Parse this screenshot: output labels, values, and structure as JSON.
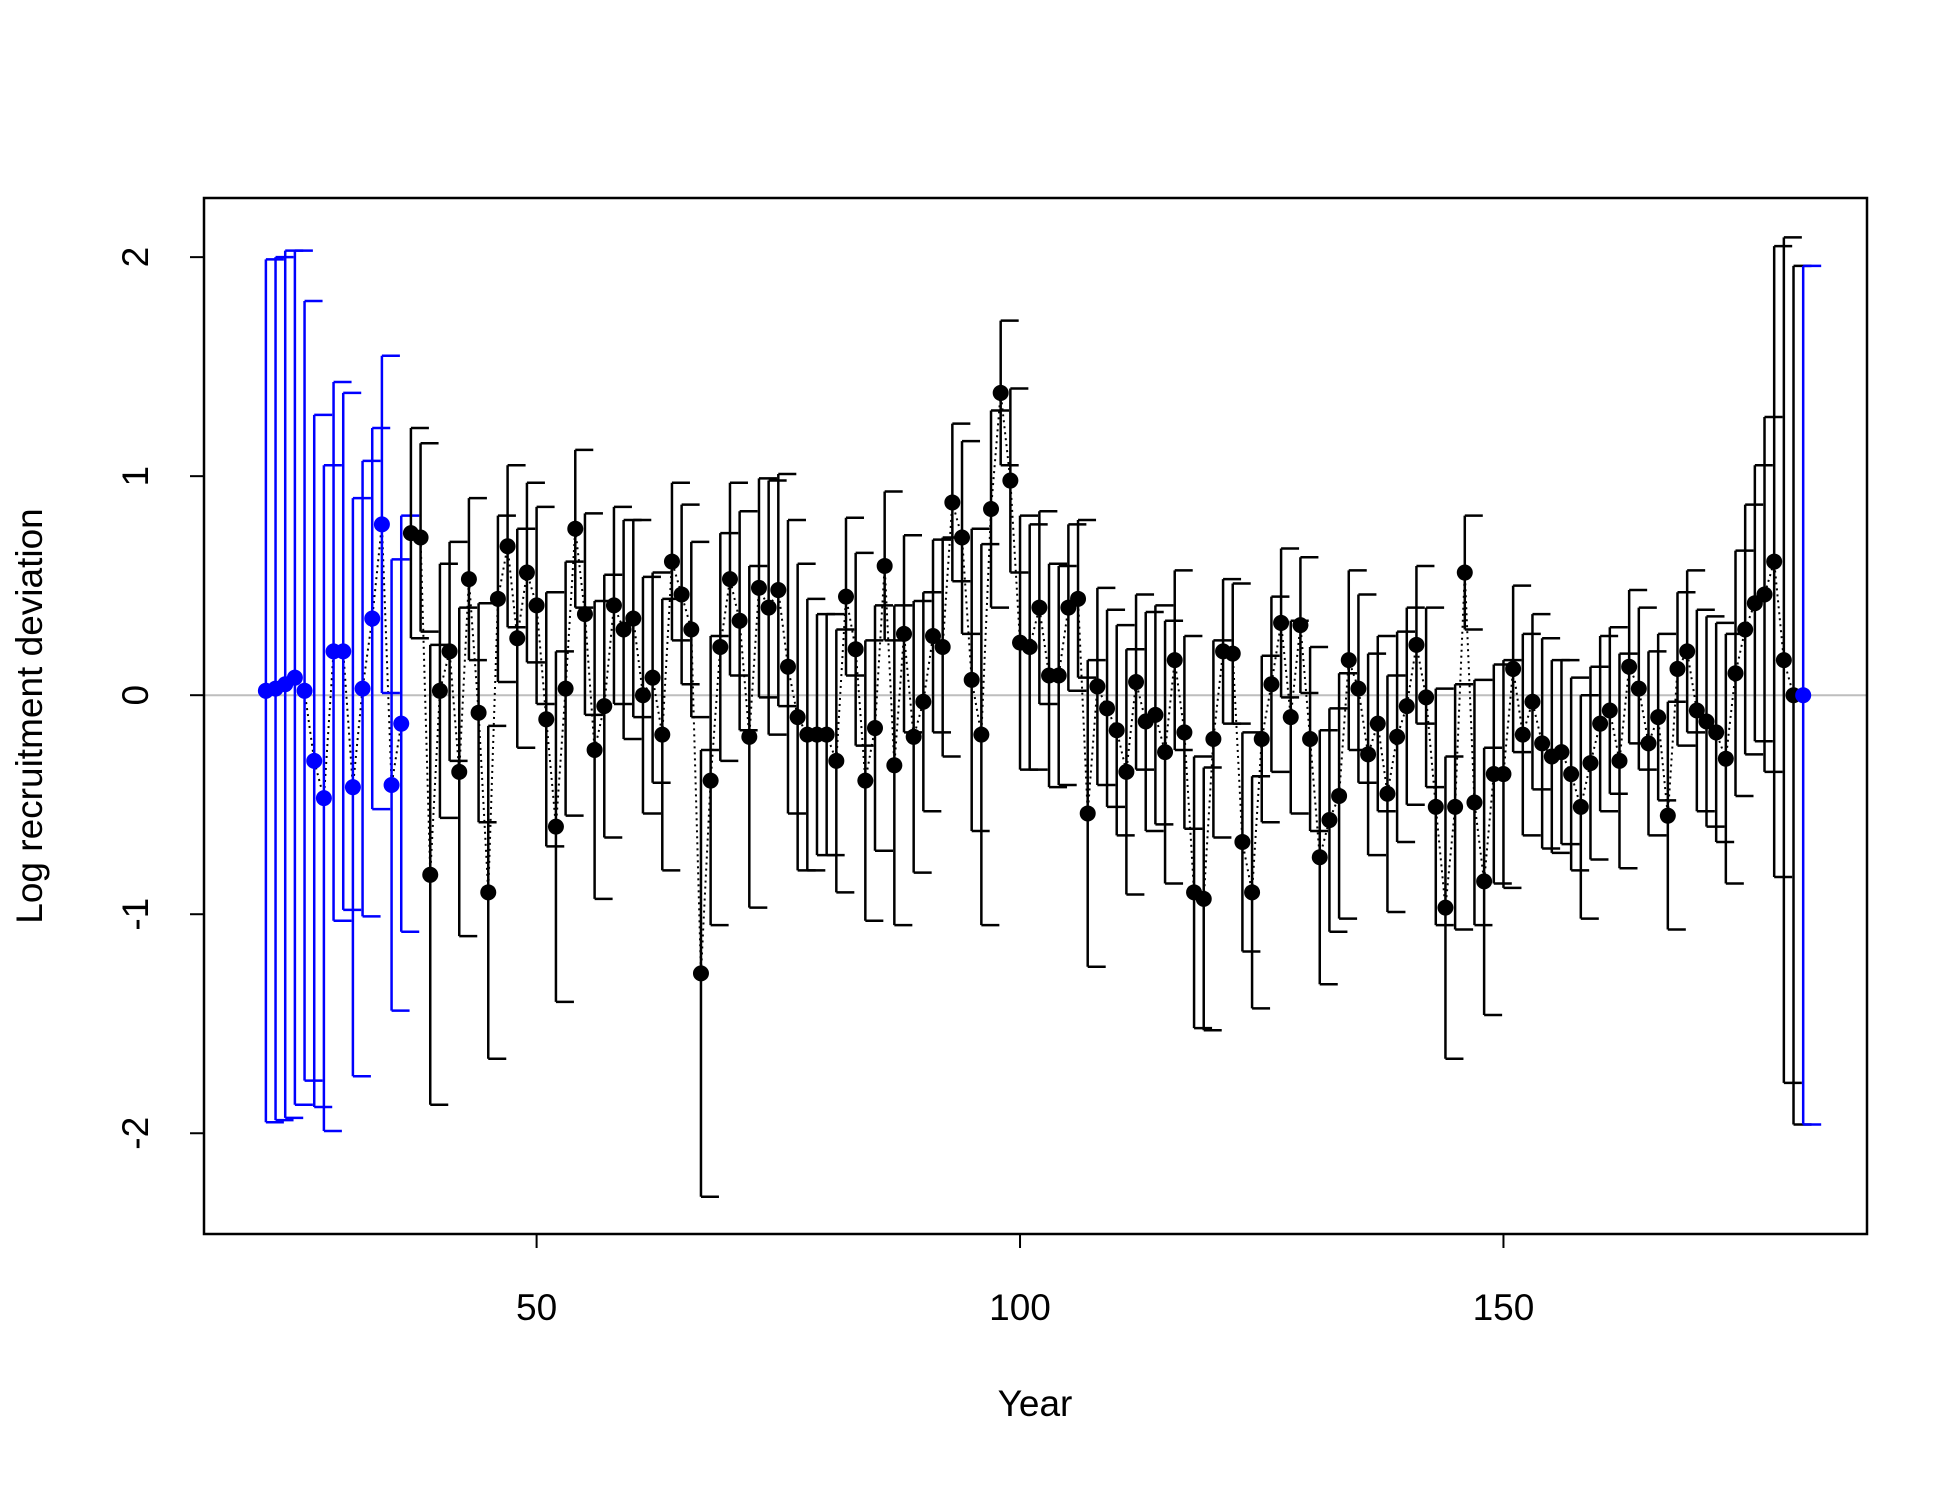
{
  "chart_data": {
    "type": "errorbar",
    "xlabel": "Year",
    "ylabel": "Log recruitment deviation",
    "xlim": [
      15.6,
      187.6
    ],
    "ylim": [
      -2.46,
      2.27
    ],
    "xticks": [
      50,
      100,
      150
    ],
    "yticks": [
      -2,
      -1,
      0,
      1,
      2
    ],
    "hline": 0,
    "hline_color": "#bebebe",
    "series": [
      {
        "color": "#0000ff",
        "x": [
          22,
          23,
          24,
          25,
          26,
          27,
          28,
          29,
          30,
          31,
          32,
          33,
          34,
          35,
          36
        ],
        "values": [
          0.02,
          0.03,
          0.05,
          0.08,
          0.02,
          -0.3,
          -0.47,
          0.2,
          0.2,
          -0.42,
          0.03,
          0.35,
          0.78,
          -0.41,
          -0.13
        ],
        "error": [
          1.97,
          1.97,
          1.98,
          1.95,
          1.78,
          1.58,
          1.52,
          1.23,
          1.18,
          1.32,
          1.04,
          0.87,
          0.77,
          1.03,
          0.95
        ]
      },
      {
        "color": "#000000",
        "x": [
          37,
          38,
          39,
          40,
          41,
          42,
          43,
          44,
          45,
          46,
          47,
          48,
          49,
          50,
          51,
          52,
          53,
          54,
          55,
          56,
          57,
          58,
          59,
          60,
          61,
          62,
          63,
          64,
          65,
          66,
          67,
          68,
          69,
          70,
          71,
          72,
          73,
          74,
          75,
          76,
          77,
          78,
          79,
          80,
          81,
          82,
          83,
          84,
          85,
          86,
          87,
          88,
          89,
          90,
          91,
          92,
          93,
          94,
          95,
          96,
          97,
          98,
          99,
          100,
          101,
          102,
          103,
          104,
          105,
          106,
          107,
          108,
          109,
          110,
          111,
          112,
          113,
          114,
          115,
          116,
          117,
          118,
          119,
          120,
          121,
          122,
          123,
          124,
          125,
          126,
          127,
          128,
          129,
          130,
          131,
          132,
          133,
          134,
          135,
          136,
          137,
          138,
          139,
          140,
          141,
          142,
          143,
          144,
          145,
          146,
          147,
          148,
          149,
          150,
          151,
          152,
          153,
          154,
          155,
          156,
          157,
          158,
          159,
          160,
          161,
          162,
          163,
          164,
          165,
          166,
          167,
          168,
          169,
          170,
          171,
          172,
          173,
          174,
          175,
          176,
          177,
          178,
          179,
          180
        ],
        "values": [
          0.74,
          0.72,
          -0.82,
          0.02,
          0.2,
          -0.35,
          0.53,
          -0.08,
          -0.9,
          0.44,
          0.68,
          0.26,
          0.56,
          0.41,
          -0.11,
          -0.6,
          0.03,
          0.76,
          0.37,
          -0.25,
          -0.05,
          0.41,
          0.3,
          0.35,
          0,
          0.08,
          -0.18,
          0.61,
          0.46,
          0.3,
          -1.27,
          -0.39,
          0.22,
          0.53,
          0.34,
          -0.19,
          0.49,
          0.4,
          0.48,
          0.13,
          -0.1,
          -0.18,
          -0.18,
          -0.18,
          -0.3,
          0.45,
          0.21,
          -0.39,
          -0.15,
          0.59,
          -0.32,
          0.28,
          -0.19,
          -0.03,
          0.27,
          0.22,
          0.88,
          0.72,
          0.07,
          -0.18,
          0.85,
          1.38,
          0.98,
          0.24,
          0.22,
          0.4,
          0.09,
          0.09,
          0.4,
          0.44,
          -0.54,
          0.04,
          -0.06,
          -0.16,
          -0.35,
          0.06,
          -0.12,
          -0.09,
          -0.26,
          0.16,
          -0.17,
          -0.9,
          -0.93,
          -0.2,
          0.2,
          0.19,
          -0.67,
          -0.9,
          -0.2,
          0.05,
          0.33,
          -0.1,
          0.32,
          -0.2,
          -0.74,
          -0.57,
          -0.46,
          0.16,
          0.03,
          -0.27,
          -0.13,
          -0.45,
          -0.19,
          -0.05,
          0.23,
          -0.01,
          -0.51,
          -0.97,
          -0.51,
          0.56,
          -0.49,
          -0.85,
          -0.36,
          -0.36,
          0.12,
          -0.18,
          -0.03,
          -0.22,
          -0.28,
          -0.26,
          -0.36,
          -0.51,
          -0.31,
          -0.13,
          -0.07,
          -0.3,
          0.13,
          0.03,
          -0.22,
          -0.1,
          -0.55,
          0.12,
          0.2,
          -0.07,
          -0.12,
          -0.17,
          -0.29,
          0.1,
          0.3,
          0.42,
          0.46,
          0.61,
          0.16,
          0
        ],
        "error": [
          0.48,
          0.43,
          1.05,
          0.58,
          0.5,
          0.75,
          0.37,
          0.5,
          0.76,
          0.38,
          0.37,
          0.5,
          0.41,
          0.45,
          0.58,
          0.8,
          0.58,
          0.36,
          0.46,
          0.68,
          0.6,
          0.45,
          0.5,
          0.45,
          0.54,
          0.48,
          0.62,
          0.36,
          0.41,
          0.4,
          1.02,
          0.66,
          0.52,
          0.44,
          0.5,
          0.78,
          0.5,
          0.58,
          0.53,
          0.67,
          0.7,
          0.62,
          0.55,
          0.55,
          0.6,
          0.36,
          0.44,
          0.64,
          0.56,
          0.34,
          0.73,
          0.45,
          0.62,
          0.5,
          0.44,
          0.5,
          0.36,
          0.44,
          0.69,
          0.87,
          0.45,
          0.33,
          0.42,
          0.58,
          0.56,
          0.44,
          0.51,
          0.5,
          0.38,
          0.36,
          0.7,
          0.45,
          0.45,
          0.48,
          0.56,
          0.4,
          0.5,
          0.5,
          0.6,
          0.41,
          0.44,
          0.62,
          0.6,
          0.45,
          0.33,
          0.32,
          0.5,
          0.53,
          0.38,
          0.4,
          0.34,
          0.44,
          0.31,
          0.42,
          0.58,
          0.51,
          0.56,
          0.41,
          0.43,
          0.46,
          0.4,
          0.54,
          0.48,
          0.45,
          0.36,
          0.41,
          0.54,
          0.69,
          0.56,
          0.26,
          0.56,
          0.61,
          0.5,
          0.52,
          0.38,
          0.46,
          0.4,
          0.48,
          0.44,
          0.42,
          0.44,
          0.51,
          0.44,
          0.4,
          0.38,
          0.49,
          0.35,
          0.37,
          0.42,
          0.38,
          0.52,
          0.35,
          0.37,
          0.46,
          0.48,
          0.5,
          0.57,
          0.56,
          0.57,
          0.63,
          0.81,
          1.44,
          1.93,
          1.96
        ]
      },
      {
        "color": "#0000ff",
        "x": [
          181
        ],
        "values": [
          0
        ],
        "error": [
          1.96
        ]
      }
    ]
  }
}
